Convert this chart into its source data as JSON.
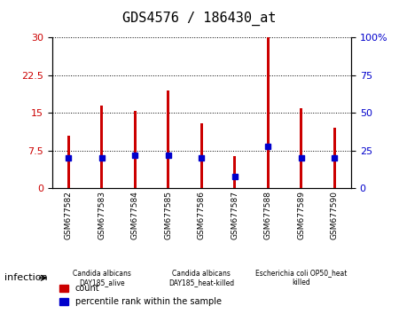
{
  "title": "GDS4576 / 186430_at",
  "samples": [
    "GSM677582",
    "GSM677583",
    "GSM677584",
    "GSM677585",
    "GSM677586",
    "GSM677587",
    "GSM677588",
    "GSM677589",
    "GSM677590"
  ],
  "count_values": [
    10.5,
    16.5,
    15.5,
    19.5,
    13.0,
    6.5,
    30.0,
    16.0,
    12.0
  ],
  "percentile_values": [
    20,
    20,
    22,
    22,
    20,
    8,
    28,
    20,
    20
  ],
  "bar_color": "#cc0000",
  "percentile_color": "#0000cc",
  "ylim_left": [
    0,
    30
  ],
  "ylim_right": [
    0,
    100
  ],
  "yticks_left": [
    0,
    7.5,
    15,
    22.5,
    30
  ],
  "ytick_labels_left": [
    "0",
    "7.5",
    "15",
    "22.5",
    "30"
  ],
  "yticks_right": [
    0,
    25,
    50,
    75,
    100
  ],
  "ytick_labels_right": [
    "0",
    "25",
    "50",
    "75",
    "100%"
  ],
  "groups": [
    {
      "label": "Candida albicans\nDAY185_alive",
      "start": 0,
      "end": 3,
      "color": "#bbffbb"
    },
    {
      "label": "Candida albicans\nDAY185_heat-killed",
      "start": 3,
      "end": 6,
      "color": "#99ee99"
    },
    {
      "label": "Escherichia coli OP50_heat\nkilled",
      "start": 6,
      "end": 9,
      "color": "#77dd77"
    }
  ],
  "infection_label": "infection",
  "legend_count_label": "count",
  "legend_percentile_label": "percentile rank within the sample",
  "tick_label_bg": "#cccccc"
}
